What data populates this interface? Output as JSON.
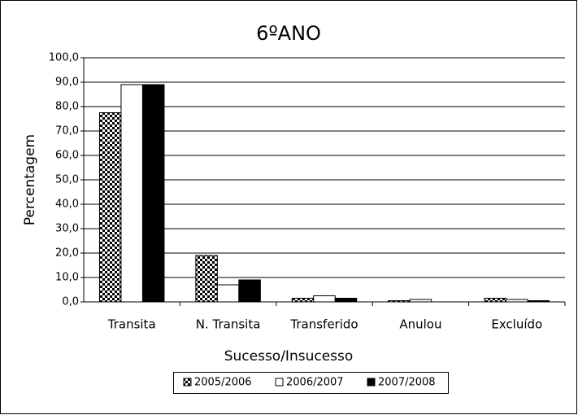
{
  "chart_data": {
    "type": "bar",
    "title": "6ºANO",
    "x_label": "Sucesso/Insucesso",
    "y_label": "Percentagem",
    "categories": [
      "Transita",
      "N. Transita",
      "Transferido",
      "Anulou",
      "Excluído"
    ],
    "series": [
      {
        "name": "2005/2006",
        "color": "#000000",
        "pattern": "checkerboard",
        "values": [
          77.5,
          19,
          1.5,
          0.5,
          1.5
        ]
      },
      {
        "name": "2006/2007",
        "color": "#ffffff",
        "values": [
          89,
          7,
          2.5,
          1,
          1
        ]
      },
      {
        "name": "2007/2008",
        "color": "#000000",
        "values": [
          89,
          9,
          1.5,
          0,
          0.5
        ]
      }
    ],
    "ylim": [
      0,
      100
    ],
    "yticks": [
      {
        "value": 0,
        "label": "0,0"
      },
      {
        "value": 10,
        "label": "10,0"
      },
      {
        "value": 20,
        "label": "20,0"
      },
      {
        "value": 30,
        "label": "30,0"
      },
      {
        "value": 40,
        "label": "40,0"
      },
      {
        "value": 50,
        "label": "50,0"
      },
      {
        "value": 60,
        "label": "60,0"
      },
      {
        "value": 70,
        "label": "70,0"
      },
      {
        "value": 80,
        "label": "80,0"
      },
      {
        "value": 90,
        "label": "90,0"
      },
      {
        "value": 100,
        "label": "100,0"
      }
    ],
    "grid": true,
    "legend": "bottom"
  }
}
